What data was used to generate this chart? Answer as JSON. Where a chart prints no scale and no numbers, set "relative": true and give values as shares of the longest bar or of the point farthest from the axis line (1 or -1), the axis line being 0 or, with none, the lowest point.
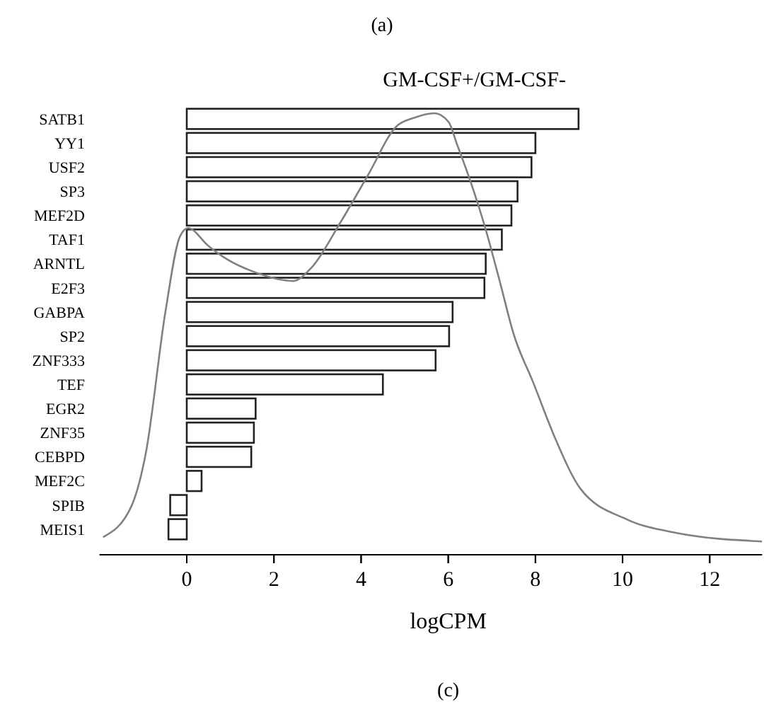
{
  "chart_data": [
    {
      "type": "bar",
      "orientation": "horizontal",
      "title": "GM-CSF+/GM-CSF-",
      "xlabel": "logCPM",
      "annotations": [
        "(a)",
        "(c)"
      ],
      "categories": [
        "SATB1",
        "YY1",
        "USF2",
        "SP3",
        "MEF2D",
        "TAF1",
        "ARNTL",
        "E2F3",
        "GABPA",
        "SP2",
        "ZNF333",
        "TEF",
        "EGR2",
        "ZNF35",
        "CEBPD",
        "MEF2C",
        "SPIB",
        "MEIS1"
      ],
      "color": "#ffffff",
      "values": [
        8.99,
        8.0,
        7.91,
        7.59,
        7.45,
        7.23,
        6.86,
        6.83,
        6.1,
        6.02,
        5.71,
        4.5,
        1.58,
        1.54,
        1.48,
        0.34,
        -0.38,
        -0.42
      ],
      "xlim": [
        -2,
        13.2
      ],
      "xticks": [
        0,
        2,
        4,
        6,
        8,
        10,
        12
      ]
    },
    {
      "type": "line",
      "relative": true,
      "color": "#808080",
      "tick_labels": false,
      "xlim": [
        -2,
        13.2
      ],
      "xticks": [
        0,
        2,
        4,
        6,
        8,
        10,
        12
      ],
      "x": [
        -1.92,
        -1.27,
        -0.94,
        -0.49,
        -0.16,
        0.03,
        0.49,
        0.91,
        1.56,
        2.44,
        2.86,
        3.51,
        4.16,
        4.81,
        5.23,
        5.68,
        6.01,
        6.2,
        6.53,
        6.85,
        7.18,
        7.5,
        7.95,
        8.47,
        9.03,
        10.1,
        11.2,
        13.2
      ],
      "values": [
        0.04,
        0.11,
        0.23,
        0.55,
        0.72,
        0.74,
        0.7,
        0.67,
        0.64,
        0.62,
        0.65,
        0.75,
        0.86,
        0.97,
        0.99,
        1.0,
        0.98,
        0.93,
        0.84,
        0.74,
        0.62,
        0.5,
        0.39,
        0.26,
        0.15,
        0.08,
        0.05,
        0.03
      ]
    }
  ]
}
